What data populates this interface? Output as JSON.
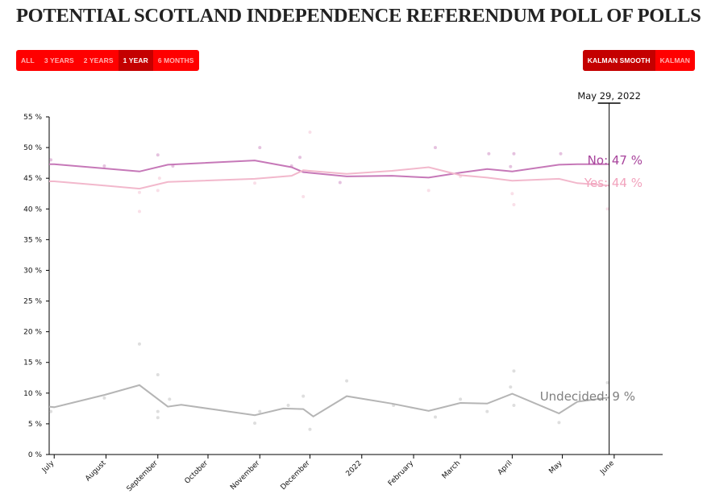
{
  "title": "POTENTIAL SCOTLAND INDEPENDENCE REFERENDUM POLL OF POLLS",
  "range_buttons": [
    {
      "label": "ALL",
      "active": false
    },
    {
      "label": "3 YEARS",
      "active": false
    },
    {
      "label": "2 YEARS",
      "active": false
    },
    {
      "label": "1 YEAR",
      "active": true
    },
    {
      "label": "6 MONTHS",
      "active": false
    }
  ],
  "smooth_buttons": [
    {
      "label": "KALMAN SMOOTH",
      "active": true
    },
    {
      "label": "KALMAN",
      "active": false
    }
  ],
  "chart_data": {
    "type": "line",
    "current_date": "May 29, 2022",
    "x_range": [
      "2021-06-28",
      "2022-06-30"
    ],
    "x_ticks": [
      {
        "label": "July",
        "date": "2021-07-01"
      },
      {
        "label": "August",
        "date": "2021-08-01"
      },
      {
        "label": "September",
        "date": "2021-09-01"
      },
      {
        "label": "October",
        "date": "2021-10-01"
      },
      {
        "label": "November",
        "date": "2021-11-01"
      },
      {
        "label": "December",
        "date": "2021-12-01"
      },
      {
        "label": "2022",
        "date": "2022-01-01"
      },
      {
        "label": "February",
        "date": "2022-02-01"
      },
      {
        "label": "March",
        "date": "2022-03-01"
      },
      {
        "label": "April",
        "date": "2022-04-01"
      },
      {
        "label": "May",
        "date": "2022-05-01"
      },
      {
        "label": "June",
        "date": "2022-06-01"
      }
    ],
    "y_range": [
      0,
      55
    ],
    "y_ticks": [
      {
        "value": 0,
        "label": "0 %"
      },
      {
        "value": 5,
        "label": "5 %"
      },
      {
        "value": 10,
        "label": "10 %"
      },
      {
        "value": 15,
        "label": "15 %"
      },
      {
        "value": 20,
        "label": "20 %"
      },
      {
        "value": 25,
        "label": "25 %"
      },
      {
        "value": 30,
        "label": "30 %"
      },
      {
        "value": 35,
        "label": "35 %"
      },
      {
        "value": 40,
        "label": "40 %"
      },
      {
        "value": 45,
        "label": "45 %"
      },
      {
        "value": 50,
        "label": "50 %"
      },
      {
        "value": 55,
        "label": "55 %"
      }
    ],
    "series": [
      {
        "name": "No",
        "end_label": "No: 47 %",
        "color": "#c678b8",
        "line": [
          {
            "x": "2021-06-28",
            "y": 47.3
          },
          {
            "x": "2021-07-01",
            "y": 47.3
          },
          {
            "x": "2021-07-31",
            "y": 46.6
          },
          {
            "x": "2021-08-21",
            "y": 46.1
          },
          {
            "x": "2021-09-07",
            "y": 47.2
          },
          {
            "x": "2021-10-29",
            "y": 47.9
          },
          {
            "x": "2021-11-20",
            "y": 46.8
          },
          {
            "x": "2021-11-27",
            "y": 46.0
          },
          {
            "x": "2021-12-23",
            "y": 45.3
          },
          {
            "x": "2022-01-19",
            "y": 45.4
          },
          {
            "x": "2022-02-10",
            "y": 45.1
          },
          {
            "x": "2022-03-01",
            "y": 45.9
          },
          {
            "x": "2022-03-17",
            "y": 46.5
          },
          {
            "x": "2022-04-01",
            "y": 46.1
          },
          {
            "x": "2022-04-29",
            "y": 47.2
          },
          {
            "x": "2022-05-10",
            "y": 47.3
          },
          {
            "x": "2022-05-29",
            "y": 47.3
          }
        ],
        "points": [
          {
            "x": "2021-06-29",
            "y": 48
          },
          {
            "x": "2021-07-31",
            "y": 47
          },
          {
            "x": "2021-09-01",
            "y": 48.8
          },
          {
            "x": "2021-09-10",
            "y": 47
          },
          {
            "x": "2021-11-01",
            "y": 50
          },
          {
            "x": "2021-11-20",
            "y": 47
          },
          {
            "x": "2021-11-25",
            "y": 48.4
          },
          {
            "x": "2021-12-19",
            "y": 44.3
          },
          {
            "x": "2022-02-14",
            "y": 50
          },
          {
            "x": "2022-03-18",
            "y": 49
          },
          {
            "x": "2022-03-31",
            "y": 46.9
          },
          {
            "x": "2022-04-02",
            "y": 49
          },
          {
            "x": "2022-04-30",
            "y": 49
          }
        ]
      },
      {
        "name": "Yes",
        "end_label": "Yes: 44 %",
        "color": "#f2b8cc",
        "line": [
          {
            "x": "2021-06-28",
            "y": 44.5
          },
          {
            "x": "2021-07-01",
            "y": 44.5
          },
          {
            "x": "2021-07-31",
            "y": 43.8
          },
          {
            "x": "2021-08-21",
            "y": 43.3
          },
          {
            "x": "2021-09-07",
            "y": 44.4
          },
          {
            "x": "2021-10-29",
            "y": 44.9
          },
          {
            "x": "2021-11-20",
            "y": 45.4
          },
          {
            "x": "2021-11-27",
            "y": 46.3
          },
          {
            "x": "2021-12-23",
            "y": 45.7
          },
          {
            "x": "2022-01-19",
            "y": 46.2
          },
          {
            "x": "2022-02-10",
            "y": 46.8
          },
          {
            "x": "2022-03-01",
            "y": 45.5
          },
          {
            "x": "2022-03-17",
            "y": 45.1
          },
          {
            "x": "2022-04-01",
            "y": 44.6
          },
          {
            "x": "2022-04-29",
            "y": 44.9
          },
          {
            "x": "2022-05-10",
            "y": 44.2
          },
          {
            "x": "2022-05-29",
            "y": 43.8
          }
        ],
        "points": [
          {
            "x": "2021-08-21",
            "y": 42.7
          },
          {
            "x": "2021-08-21",
            "y": 39.6
          },
          {
            "x": "2021-09-01",
            "y": 43
          },
          {
            "x": "2021-09-02",
            "y": 45
          },
          {
            "x": "2021-10-29",
            "y": 44.2
          },
          {
            "x": "2021-11-27",
            "y": 42
          },
          {
            "x": "2021-12-01",
            "y": 52.5
          },
          {
            "x": "2022-02-10",
            "y": 43
          },
          {
            "x": "2022-03-01",
            "y": 45.3
          },
          {
            "x": "2022-04-01",
            "y": 42.5
          },
          {
            "x": "2022-04-02",
            "y": 40.7
          },
          {
            "x": "2022-05-28",
            "y": 40
          }
        ]
      },
      {
        "name": "Undecided",
        "end_label": "Undecided: 9 %",
        "color": "#b5b5b5",
        "line": [
          {
            "x": "2021-06-28",
            "y": 7.8
          },
          {
            "x": "2021-07-01",
            "y": 7.7
          },
          {
            "x": "2021-07-31",
            "y": 9.7
          },
          {
            "x": "2021-08-21",
            "y": 11.3
          },
          {
            "x": "2021-09-07",
            "y": 7.8
          },
          {
            "x": "2021-09-15",
            "y": 8.1
          },
          {
            "x": "2021-10-29",
            "y": 6.4
          },
          {
            "x": "2021-11-15",
            "y": 7.5
          },
          {
            "x": "2021-11-27",
            "y": 7.4
          },
          {
            "x": "2021-12-03",
            "y": 6.2
          },
          {
            "x": "2021-12-23",
            "y": 9.5
          },
          {
            "x": "2022-01-19",
            "y": 8.3
          },
          {
            "x": "2022-02-10",
            "y": 7.1
          },
          {
            "x": "2022-03-01",
            "y": 8.4
          },
          {
            "x": "2022-03-17",
            "y": 8.3
          },
          {
            "x": "2022-04-01",
            "y": 9.9
          },
          {
            "x": "2022-04-29",
            "y": 6.7
          },
          {
            "x": "2022-05-10",
            "y": 8.6
          },
          {
            "x": "2022-05-29",
            "y": 9.3
          }
        ],
        "points": [
          {
            "x": "2021-06-29",
            "y": 7
          },
          {
            "x": "2021-07-31",
            "y": 9.2
          },
          {
            "x": "2021-08-21",
            "y": 18
          },
          {
            "x": "2021-09-01",
            "y": 13
          },
          {
            "x": "2021-09-01",
            "y": 7
          },
          {
            "x": "2021-09-01",
            "y": 6
          },
          {
            "x": "2021-09-08",
            "y": 9
          },
          {
            "x": "2021-10-29",
            "y": 5.1
          },
          {
            "x": "2021-11-01",
            "y": 7
          },
          {
            "x": "2021-11-18",
            "y": 8
          },
          {
            "x": "2021-11-27",
            "y": 9.5
          },
          {
            "x": "2021-12-01",
            "y": 4.1
          },
          {
            "x": "2021-12-23",
            "y": 12
          },
          {
            "x": "2022-01-20",
            "y": 8
          },
          {
            "x": "2022-02-14",
            "y": 6.1
          },
          {
            "x": "2022-03-01",
            "y": 9
          },
          {
            "x": "2022-03-17",
            "y": 7
          },
          {
            "x": "2022-03-31",
            "y": 11
          },
          {
            "x": "2022-04-02",
            "y": 13.6
          },
          {
            "x": "2022-04-02",
            "y": 8
          },
          {
            "x": "2022-04-29",
            "y": 5.2
          },
          {
            "x": "2022-05-28",
            "y": 11.7
          }
        ]
      }
    ]
  }
}
